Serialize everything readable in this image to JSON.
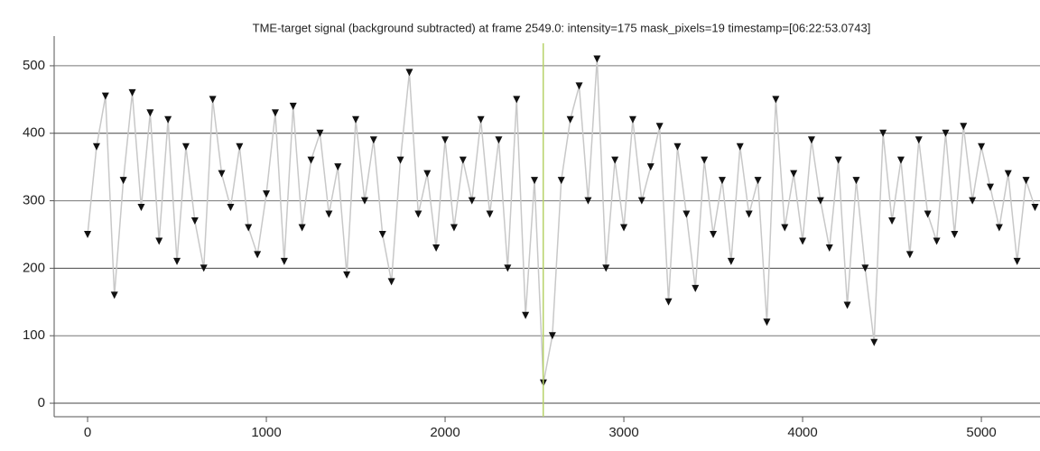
{
  "chart_data": {
    "type": "line",
    "title": "TME-target signal (background subtracted) at frame 2549.0: intensity=175 mask_pixels=19 timestamp=[06:22:53.0743]",
    "x": [
      0,
      50,
      100,
      150,
      200,
      250,
      300,
      350,
      400,
      450,
      500,
      550,
      600,
      650,
      700,
      750,
      800,
      850,
      900,
      950,
      1000,
      1050,
      1100,
      1150,
      1200,
      1250,
      1300,
      1350,
      1400,
      1450,
      1500,
      1550,
      1600,
      1650,
      1700,
      1750,
      1800,
      1850,
      1900,
      1950,
      2000,
      2050,
      2100,
      2150,
      2200,
      2250,
      2300,
      2350,
      2400,
      2450,
      2500,
      2550,
      2600,
      2650,
      2700,
      2750,
      2800,
      2850,
      2900,
      2950,
      3000,
      3050,
      3100,
      3150,
      3200,
      3250,
      3300,
      3350,
      3400,
      3450,
      3500,
      3550,
      3600,
      3650,
      3700,
      3750,
      3800,
      3850,
      3900,
      3950,
      4000,
      4050,
      4100,
      4150,
      4200,
      4250,
      4300,
      4350,
      4400,
      4450,
      4500,
      4550,
      4600,
      4650,
      4700,
      4750,
      4800,
      4850,
      4900,
      4950,
      5000,
      5050,
      5100,
      5150,
      5200,
      5250,
      5300
    ],
    "values": [
      250,
      380,
      455,
      160,
      330,
      460,
      290,
      430,
      240,
      420,
      210,
      380,
      270,
      200,
      450,
      340,
      290,
      380,
      260,
      220,
      310,
      430,
      210,
      440,
      260,
      360,
      400,
      280,
      350,
      190,
      420,
      300,
      390,
      250,
      180,
      360,
      490,
      280,
      340,
      230,
      390,
      260,
      360,
      300,
      420,
      280,
      390,
      200,
      450,
      130,
      330,
      30,
      100,
      330,
      420,
      470,
      300,
      510,
      200,
      360,
      260,
      420,
      300,
      350,
      410,
      150,
      380,
      280,
      170,
      360,
      250,
      330,
      210,
      380,
      280,
      330,
      120,
      450,
      260,
      340,
      240,
      390,
      300,
      230,
      360,
      145,
      330,
      200,
      90,
      400,
      270,
      360,
      220,
      390,
      280,
      240,
      400,
      250,
      410,
      300,
      380,
      320,
      260,
      340,
      210,
      330,
      290
    ],
    "color": "#111111",
    "line_color": "#c8c8c8",
    "xlim": [
      -187,
      5328
    ],
    "ylim": [
      -20,
      544
    ],
    "xticks": [
      0,
      1000,
      2000,
      3000,
      4000,
      5000
    ],
    "yticks": [
      0,
      100,
      200,
      300,
      400,
      500
    ],
    "grid": true,
    "cursor": {
      "x": 2549,
      "color": "#b8d36a"
    }
  }
}
